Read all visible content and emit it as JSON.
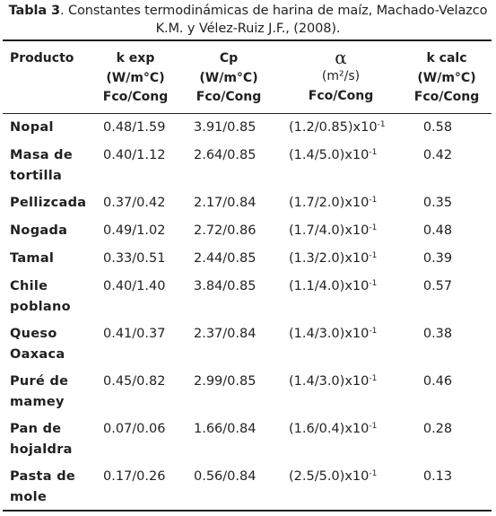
{
  "caption": {
    "label": "Tabla 3",
    "text_line1": ". Constantes termodinámicas de harina de maíz, Machado-Velazco",
    "text_line2": "K.M. y Vélez-Ruiz J.F., (2008)."
  },
  "headers": {
    "producto": "Producto",
    "kexp": [
      "k exp",
      "(W/m°C)",
      "Fco/Cong"
    ],
    "cp": [
      "Cp",
      "(W/m°C)",
      "Fco/Cong"
    ],
    "alpha": [
      "α",
      "(m²/s)",
      "Fco/Cong"
    ],
    "kcalc": [
      "k calc",
      "(W/m°C)",
      "Fco/Cong"
    ]
  },
  "alpha_exponent": "-1",
  "alpha_suffix": ")x10",
  "rows": [
    {
      "producto": [
        "Nopal"
      ],
      "kexp": "0.48/1.59",
      "cp": "3.91/0.85",
      "alpha": "(1.2/0.85",
      "kcalc": "0.58"
    },
    {
      "producto": [
        "Masa de",
        "tortilla"
      ],
      "kexp": "0.40/1.12",
      "cp": "2.64/0.85",
      "alpha": "(1.4/5.0",
      "kcalc": "0.42"
    },
    {
      "producto": [
        "Pellizcada"
      ],
      "kexp": "0.37/0.42",
      "cp": "2.17/0.84",
      "alpha": "(1.7/2.0",
      "kcalc": "0.35"
    },
    {
      "producto": [
        "Nogada"
      ],
      "kexp": "0.49/1.02",
      "cp": "2.72/0.86",
      "alpha": "(1.7/4.0",
      "kcalc": "0.48"
    },
    {
      "producto": [
        "Tamal"
      ],
      "kexp": "0.33/0.51",
      "cp": "2.44/0.85",
      "alpha": "(1.3/2.0",
      "kcalc": "0.39"
    },
    {
      "producto": [
        "Chile",
        "poblano"
      ],
      "kexp": "0.40/1.40",
      "cp": "3.84/0.85",
      "alpha": "(1.1/4.0",
      "kcalc": "0.57"
    },
    {
      "producto": [
        "Queso",
        "Oaxaca"
      ],
      "kexp": "0.41/0.37",
      "cp": "2.37/0.84",
      "alpha": "(1.4/3.0",
      "kcalc": "0.38"
    },
    {
      "producto": [
        "Puré de",
        "mamey"
      ],
      "kexp": "0.45/0.82",
      "cp": "2.99/0.85",
      "alpha": "(1.4/3.0",
      "kcalc": "0.46"
    },
    {
      "producto": [
        "Pan de",
        "hojaldra"
      ],
      "kexp": "0.07/0.06",
      "cp": "1.66/0.84",
      "alpha": "(1.6/0.4",
      "kcalc": "0.28"
    },
    {
      "producto": [
        "Pasta de",
        "mole"
      ],
      "kexp": "0.17/0.26",
      "cp": "0.56/0.84",
      "alpha": "(2.5/5.0",
      "kcalc": "0.13"
    }
  ]
}
